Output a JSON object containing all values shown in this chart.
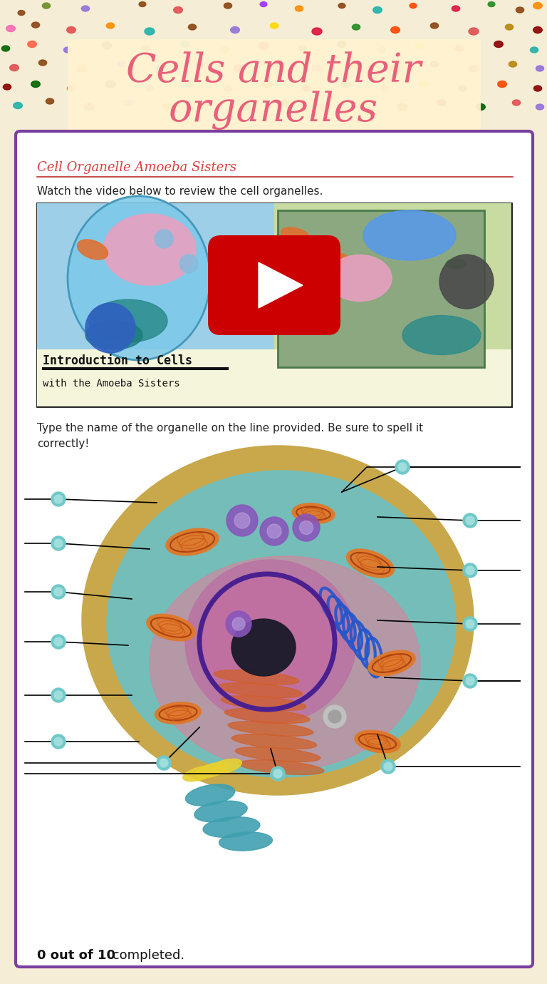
{
  "title_line1": "Cells and their",
  "title_line2": "organelles",
  "title_color": "#E8607A",
  "bg_color": "#F5EDD6",
  "header_box_color": "#FFF3D0",
  "content_bg": "#FFFFFF",
  "border_color": "#7B3F9E",
  "section1_title": "Cell Organelle Amoeba Sisters",
  "section1_title_color": "#D94040",
  "section1_line_color": "#C03030",
  "section1_text": "Watch the video below to review the cell organelles.",
  "section2_text1": "Type the name of the organelle on the line provided. Be sure to spell it",
  "section2_text2": "correctly!",
  "footer_bold": "0 out of 10",
  "footer_normal": " completed.",
  "dot_data": [
    [
      30,
      18,
      7,
      "#8B4513"
    ],
    [
      65,
      8,
      8,
      "#6B8E23"
    ],
    [
      120,
      12,
      8,
      "#9370DB"
    ],
    [
      200,
      6,
      7,
      "#8B4513"
    ],
    [
      250,
      14,
      9,
      "#E05050"
    ],
    [
      320,
      8,
      8,
      "#8B4513"
    ],
    [
      370,
      6,
      7,
      "#9B30FF"
    ],
    [
      420,
      12,
      8,
      "#FF8C00"
    ],
    [
      480,
      8,
      7,
      "#8B4513"
    ],
    [
      530,
      14,
      9,
      "#20B2AA"
    ],
    [
      580,
      8,
      7,
      "#FF4500"
    ],
    [
      640,
      12,
      8,
      "#DC143C"
    ],
    [
      690,
      6,
      7,
      "#228B22"
    ],
    [
      730,
      14,
      8,
      "#8B4513"
    ],
    [
      755,
      8,
      9,
      "#FF8C00"
    ],
    [
      15,
      40,
      9,
      "#FF69B4"
    ],
    [
      50,
      35,
      8,
      "#8B4513"
    ],
    [
      100,
      42,
      9,
      "#E05050"
    ],
    [
      155,
      36,
      8,
      "#FF8C00"
    ],
    [
      210,
      44,
      10,
      "#20B2AA"
    ],
    [
      270,
      38,
      8,
      "#8B4513"
    ],
    [
      330,
      42,
      9,
      "#9370DB"
    ],
    [
      385,
      36,
      8,
      "#FFD700"
    ],
    [
      445,
      44,
      10,
      "#DC143C"
    ],
    [
      500,
      38,
      8,
      "#228B22"
    ],
    [
      555,
      42,
      9,
      "#FF4500"
    ],
    [
      610,
      36,
      8,
      "#8B4513"
    ],
    [
      665,
      44,
      10,
      "#E05050"
    ],
    [
      715,
      38,
      8,
      "#B8860B"
    ],
    [
      755,
      42,
      9,
      "#8B0000"
    ],
    [
      8,
      68,
      8,
      "#006400"
    ],
    [
      45,
      62,
      9,
      "#FF6347"
    ],
    [
      95,
      70,
      8,
      "#9370DB"
    ],
    [
      150,
      64,
      10,
      "#8B4513"
    ],
    [
      205,
      68,
      8,
      "#E05050"
    ],
    [
      260,
      62,
      9,
      "#20B2AA"
    ],
    [
      315,
      70,
      8,
      "#FF8C00"
    ],
    [
      370,
      64,
      10,
      "#DC143C"
    ],
    [
      425,
      68,
      8,
      "#228B22"
    ],
    [
      480,
      62,
      9,
      "#8B4513"
    ],
    [
      535,
      70,
      8,
      "#FF69B4"
    ],
    [
      590,
      64,
      10,
      "#FFD700"
    ],
    [
      645,
      68,
      8,
      "#FF4500"
    ],
    [
      700,
      62,
      9,
      "#8B0000"
    ],
    [
      750,
      70,
      8,
      "#20B2AA"
    ],
    [
      20,
      95,
      9,
      "#E05050"
    ],
    [
      60,
      88,
      8,
      "#8B4513"
    ],
    [
      115,
      96,
      10,
      "#FF8C00"
    ],
    [
      170,
      90,
      8,
      "#9370DB"
    ],
    [
      225,
      96,
      9,
      "#20B2AA"
    ],
    [
      280,
      90,
      8,
      "#8B4513"
    ],
    [
      335,
      96,
      10,
      "#DC143C"
    ],
    [
      390,
      90,
      8,
      "#228B22"
    ],
    [
      445,
      96,
      9,
      "#FF69B4"
    ],
    [
      500,
      90,
      8,
      "#FFD700"
    ],
    [
      555,
      96,
      10,
      "#FF4500"
    ],
    [
      610,
      90,
      8,
      "#8B4513"
    ],
    [
      665,
      96,
      9,
      "#E05050"
    ],
    [
      720,
      90,
      8,
      "#B8860B"
    ],
    [
      758,
      96,
      8,
      "#9370DB"
    ],
    [
      10,
      122,
      8,
      "#8B0000"
    ],
    [
      50,
      118,
      9,
      "#006400"
    ],
    [
      100,
      124,
      8,
      "#FF6347"
    ],
    [
      155,
      118,
      10,
      "#8B4513"
    ],
    [
      210,
      124,
      8,
      "#9370DB"
    ],
    [
      265,
      118,
      9,
      "#20B2AA"
    ],
    [
      320,
      124,
      8,
      "#E05050"
    ],
    [
      375,
      118,
      10,
      "#FF8C00"
    ],
    [
      430,
      124,
      8,
      "#DC143C"
    ],
    [
      485,
      118,
      9,
      "#228B22"
    ],
    [
      540,
      124,
      8,
      "#FF69B4"
    ],
    [
      595,
      118,
      10,
      "#FFD700"
    ],
    [
      650,
      124,
      8,
      "#8B4513"
    ],
    [
      705,
      118,
      9,
      "#FF4500"
    ],
    [
      755,
      124,
      8,
      "#8B0000"
    ],
    [
      25,
      148,
      9,
      "#20B2AA"
    ],
    [
      70,
      142,
      8,
      "#8B4513"
    ],
    [
      125,
      150,
      10,
      "#E05050"
    ],
    [
      180,
      144,
      8,
      "#9370DB"
    ],
    [
      235,
      150,
      9,
      "#FF8C00"
    ],
    [
      290,
      144,
      8,
      "#DC143C"
    ],
    [
      345,
      150,
      10,
      "#228B22"
    ],
    [
      400,
      144,
      8,
      "#8B4513"
    ],
    [
      455,
      150,
      9,
      "#FF69B4"
    ],
    [
      510,
      144,
      8,
      "#FFD700"
    ],
    [
      565,
      150,
      10,
      "#FF4500"
    ],
    [
      620,
      144,
      8,
      "#8B0000"
    ],
    [
      675,
      150,
      9,
      "#006400"
    ],
    [
      725,
      144,
      8,
      "#E05050"
    ],
    [
      758,
      150,
      8,
      "#9370DB"
    ]
  ]
}
